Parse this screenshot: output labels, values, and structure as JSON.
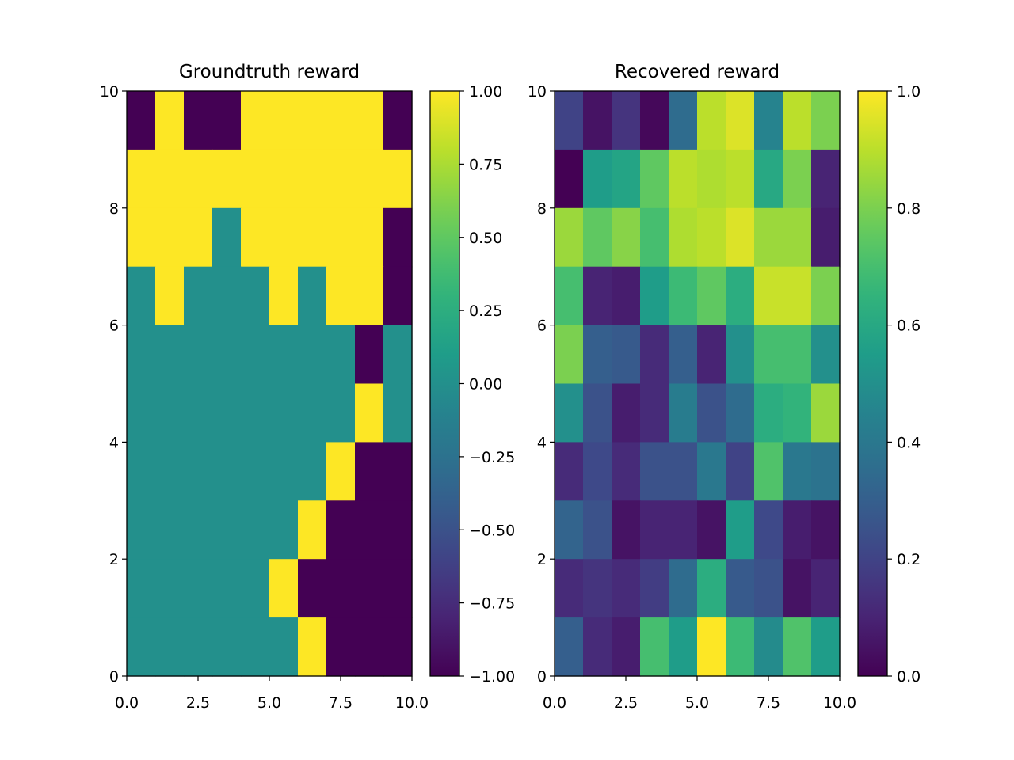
{
  "chart_data": [
    {
      "type": "heatmap",
      "title": "Groundtruth reward",
      "xlim": [
        0,
        10
      ],
      "ylim": [
        0,
        10
      ],
      "x_ticks": [
        "0.0",
        "2.5",
        "5.0",
        "7.5",
        "10.0"
      ],
      "y_ticks": [
        "0",
        "2",
        "4",
        "6",
        "8",
        "10"
      ],
      "colormap": "viridis",
      "colorbar": {
        "vmin": -1.0,
        "vmax": 1.0,
        "tick_values": [
          1.0,
          0.75,
          0.5,
          0.25,
          0.0,
          -0.25,
          -0.5,
          -0.75,
          -1.0
        ],
        "tick_labels": [
          "1.00",
          "0.75",
          "0.50",
          "0.25",
          "0.00",
          "−0.25",
          "−0.50",
          "−0.75",
          "−1.00"
        ]
      },
      "rows_top_to_bottom": [
        [
          -1,
          1,
          -1,
          -1,
          1,
          1,
          1,
          1,
          1,
          -1
        ],
        [
          1,
          1,
          1,
          1,
          1,
          1,
          1,
          1,
          1,
          1
        ],
        [
          1,
          1,
          1,
          0,
          1,
          1,
          1,
          1,
          1,
          -1
        ],
        [
          0,
          1,
          0,
          0,
          0,
          1,
          0,
          1,
          1,
          -1
        ],
        [
          0,
          0,
          0,
          0,
          0,
          0,
          0,
          0,
          -1,
          0
        ],
        [
          0,
          0,
          0,
          0,
          0,
          0,
          0,
          0,
          1,
          0
        ],
        [
          0,
          0,
          0,
          0,
          0,
          0,
          0,
          1,
          -1,
          -1
        ],
        [
          0,
          0,
          0,
          0,
          0,
          0,
          1,
          -1,
          -1,
          -1
        ],
        [
          0,
          0,
          0,
          0,
          0,
          1,
          -1,
          -1,
          -1,
          -1
        ],
        [
          0,
          0,
          0,
          0,
          0,
          0,
          1,
          -1,
          -1,
          -1
        ]
      ]
    },
    {
      "type": "heatmap",
      "title": "Recovered reward",
      "xlim": [
        0,
        10
      ],
      "ylim": [
        0,
        10
      ],
      "x_ticks": [
        "0.0",
        "2.5",
        "5.0",
        "7.5",
        "10.0"
      ],
      "y_ticks": [
        "0",
        "2",
        "4",
        "6",
        "8",
        "10"
      ],
      "colormap": "viridis",
      "colorbar": {
        "vmin": 0.0,
        "vmax": 1.0,
        "tick_values": [
          1.0,
          0.8,
          0.6,
          0.4,
          0.2,
          0.0
        ],
        "tick_labels": [
          "1.0",
          "0.8",
          "0.6",
          "0.4",
          "0.2",
          "0.0"
        ]
      },
      "rows_top_to_bottom": [
        [
          0.2,
          0.05,
          0.15,
          0.02,
          0.35,
          0.9,
          0.95,
          0.45,
          0.9,
          0.8
        ],
        [
          0.0,
          0.55,
          0.58,
          0.75,
          0.9,
          0.88,
          0.9,
          0.6,
          0.8,
          0.1
        ],
        [
          0.85,
          0.75,
          0.82,
          0.7,
          0.88,
          0.9,
          0.95,
          0.85,
          0.85,
          0.08
        ],
        [
          0.7,
          0.1,
          0.08,
          0.55,
          0.68,
          0.75,
          0.62,
          0.92,
          0.92,
          0.8
        ],
        [
          0.8,
          0.3,
          0.28,
          0.12,
          0.3,
          0.1,
          0.5,
          0.7,
          0.7,
          0.5
        ],
        [
          0.5,
          0.25,
          0.08,
          0.12,
          0.42,
          0.25,
          0.35,
          0.62,
          0.65,
          0.85
        ],
        [
          0.12,
          0.22,
          0.12,
          0.25,
          0.25,
          0.4,
          0.2,
          0.72,
          0.4,
          0.38
        ],
        [
          0.32,
          0.25,
          0.05,
          0.1,
          0.1,
          0.05,
          0.55,
          0.22,
          0.08,
          0.05
        ],
        [
          0.12,
          0.15,
          0.12,
          0.18,
          0.35,
          0.62,
          0.28,
          0.25,
          0.05,
          0.1
        ],
        [
          0.3,
          0.12,
          0.08,
          0.7,
          0.55,
          1.0,
          0.68,
          0.48,
          0.72,
          0.55
        ]
      ]
    }
  ]
}
